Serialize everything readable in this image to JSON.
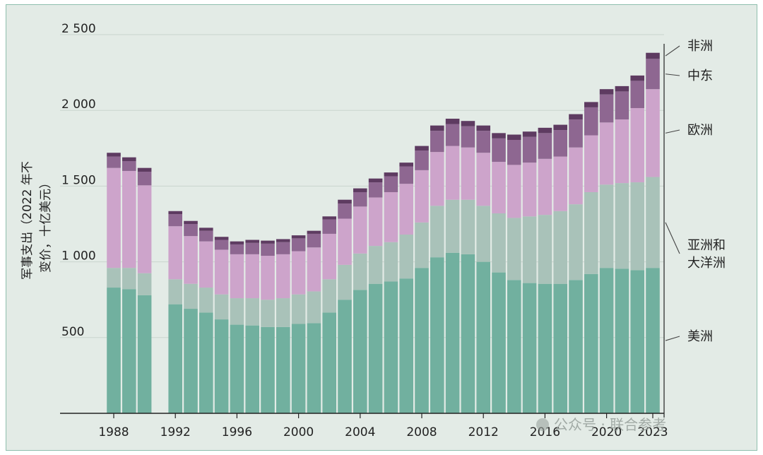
{
  "chart_data": {
    "type": "bar",
    "stacked": true,
    "ylabel_lines": [
      "军事支出（2022 年不",
      "变价，十亿美元）"
    ],
    "ylim": [
      0,
      2500
    ],
    "ytick_values": [
      500,
      1000,
      1500,
      2000,
      2500
    ],
    "ytick_labels": [
      "500",
      "1 000",
      "1 500",
      "2 000",
      "2 500"
    ],
    "xtick_years": [
      1988,
      1992,
      1996,
      2000,
      2004,
      2008,
      2012,
      2016,
      2020,
      2023
    ],
    "xtick_labels": [
      "1988",
      "1992",
      "1996",
      "2000",
      "2004",
      "2008",
      "2012",
      "2016",
      "2020",
      "2023"
    ],
    "gridlines": true,
    "legend_placement": "right",
    "categories": [
      1988,
      1989,
      1990,
      1992,
      1993,
      1994,
      1995,
      1996,
      1997,
      1998,
      1999,
      2000,
      2001,
      2002,
      2003,
      2004,
      2005,
      2006,
      2007,
      2008,
      2009,
      2010,
      2011,
      2012,
      2013,
      2014,
      2015,
      2016,
      2017,
      2018,
      2019,
      2020,
      2021,
      2022,
      2023
    ],
    "series": [
      {
        "name": "美洲",
        "color": "#71b09f",
        "values": [
          830,
          820,
          780,
          720,
          690,
          665,
          620,
          585,
          580,
          570,
          570,
          590,
          595,
          665,
          750,
          815,
          855,
          870,
          890,
          960,
          1030,
          1060,
          1050,
          1000,
          930,
          880,
          860,
          855,
          855,
          880,
          920,
          960,
          955,
          945,
          960
        ]
      },
      {
        "name": "亚洲和大洋洲",
        "color": "#a9c2b9",
        "values": [
          130,
          140,
          145,
          165,
          165,
          165,
          165,
          175,
          180,
          180,
          190,
          195,
          210,
          220,
          230,
          240,
          250,
          260,
          290,
          300,
          340,
          350,
          360,
          370,
          390,
          410,
          440,
          455,
          480,
          500,
          540,
          550,
          565,
          580,
          600
        ]
      },
      {
        "name": "欧洲",
        "color": "#cda4cb",
        "values": [
          660,
          640,
          580,
          350,
          315,
          305,
          295,
          290,
          290,
          290,
          290,
          285,
          290,
          300,
          305,
          310,
          320,
          330,
          335,
          345,
          355,
          355,
          345,
          350,
          340,
          350,
          355,
          370,
          360,
          375,
          375,
          410,
          420,
          490,
          580
        ]
      },
      {
        "name": "中东",
        "color": "#8e6791",
        "values": [
          75,
          65,
          90,
          80,
          80,
          70,
          65,
          65,
          75,
          80,
          80,
          85,
          90,
          95,
          100,
          95,
          100,
          105,
          115,
          130,
          140,
          145,
          140,
          145,
          155,
          165,
          170,
          170,
          175,
          185,
          185,
          185,
          185,
          180,
          200
        ]
      },
      {
        "name": "非洲",
        "color": "#5e3b61",
        "values": [
          25,
          25,
          25,
          20,
          20,
          20,
          20,
          20,
          20,
          20,
          20,
          20,
          20,
          20,
          25,
          25,
          25,
          25,
          25,
          30,
          35,
          35,
          35,
          35,
          35,
          35,
          35,
          35,
          35,
          35,
          35,
          35,
          35,
          35,
          40
        ]
      }
    ],
    "watermark": "公众号 · 联合参考"
  }
}
